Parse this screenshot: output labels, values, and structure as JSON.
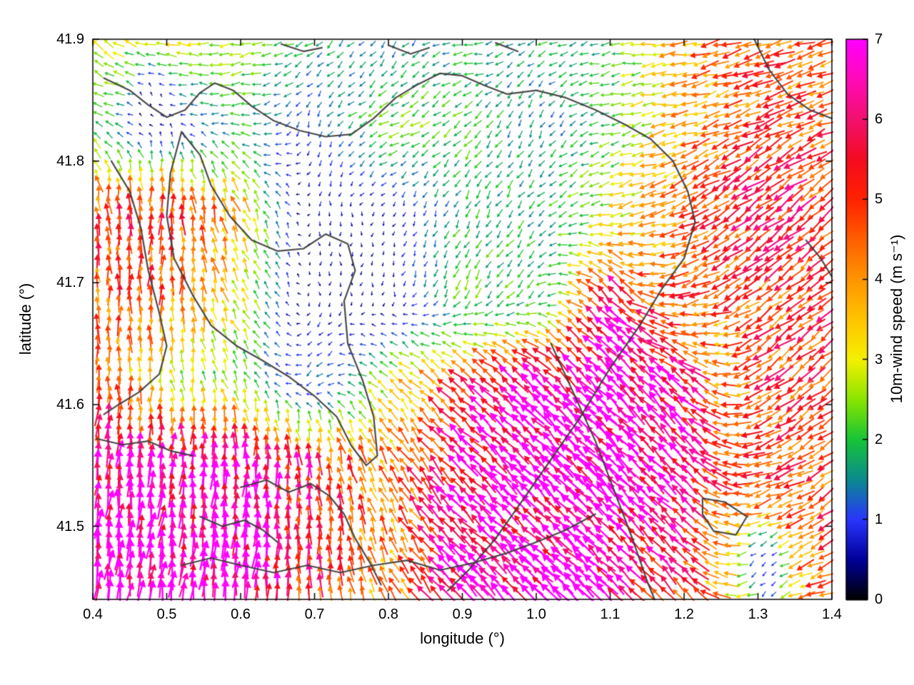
{
  "figure": {
    "background": "#ffffff"
  },
  "chart_data": {
    "type": "quiver",
    "title": "",
    "xlabel": "longitude (°)",
    "ylabel": "latitude (°)",
    "xlim": [
      0.4,
      1.4
    ],
    "ylim": [
      41.44,
      41.9
    ],
    "xtick_labels": [
      "0.4",
      "0.5",
      "0.6",
      "0.7",
      "0.8",
      "0.9",
      "1.0",
      "1.1",
      "1.2",
      "1.3",
      "1.4"
    ],
    "ytick_labels": [
      "41.5",
      "41.6",
      "41.7",
      "41.8",
      "41.9"
    ],
    "grid": false,
    "contour_color": "#3c3c3c",
    "colorbar": {
      "label": "10m-wind speed (m s⁻¹)",
      "min": 0,
      "max": 7,
      "tick_labels": [
        "0",
        "1",
        "2",
        "3",
        "4",
        "5",
        "6",
        "7"
      ],
      "stops": [
        [
          0.0,
          "#000000"
        ],
        [
          0.5,
          "#00009a"
        ],
        [
          1.0,
          "#2a35ff"
        ],
        [
          1.5,
          "#0b8a8f"
        ],
        [
          2.0,
          "#17c437"
        ],
        [
          2.5,
          "#8ae400"
        ],
        [
          3.0,
          "#f4f000"
        ],
        [
          3.5,
          "#ffc400"
        ],
        [
          4.0,
          "#ff9500"
        ],
        [
          4.5,
          "#ff5f00"
        ],
        [
          5.0,
          "#ff2200"
        ],
        [
          5.5,
          "#f30b20"
        ],
        [
          6.0,
          "#f2106e"
        ],
        [
          6.5,
          "#ff0ab8"
        ],
        [
          7.0,
          "#ff00ff"
        ]
      ]
    },
    "field": {
      "units": "m/s",
      "lon": [
        0.4,
        0.5,
        0.6,
        0.7,
        0.8,
        0.9,
        1.0,
        1.1,
        1.2,
        1.3,
        1.4
      ],
      "lat": [
        41.9,
        41.83,
        41.76,
        41.69,
        41.62,
        41.55,
        41.48,
        41.44
      ],
      "u": [
        [
          -2.5,
          -3.0,
          -2.5,
          -1.5,
          -0.5,
          -2.0,
          -1.5,
          -2.0,
          -4.0,
          -4.5,
          -4.2
        ],
        [
          -2.0,
          -0.5,
          -2.0,
          -0.3,
          -2.3,
          -1.5,
          -0.6,
          -2.0,
          -3.8,
          -4.3,
          -4.5
        ],
        [
          -0.5,
          0.3,
          -1.5,
          0.0,
          -0.2,
          -0.8,
          -1.2,
          -2.8,
          -4.0,
          -4.5,
          -4.0
        ],
        [
          -0.3,
          0.5,
          -1.5,
          0.0,
          -0.1,
          -1.0,
          -1.4,
          -4.5,
          -4.5,
          -3.8,
          -4.0
        ],
        [
          0.0,
          -0.5,
          -1.0,
          -1.0,
          -2.0,
          -4.0,
          -4.8,
          -5.0,
          -4.6,
          -4.0,
          -4.0
        ],
        [
          0.5,
          0.5,
          0.3,
          -0.5,
          -2.0,
          -4.6,
          -5.0,
          -5.0,
          -4.6,
          -4.8,
          -4.0
        ],
        [
          0.8,
          0.8,
          0.5,
          0.0,
          -1.5,
          -4.6,
          -4.8,
          -4.8,
          -3.9,
          -4.0,
          -4.2
        ],
        [
          1.0,
          1.0,
          0.6,
          0.0,
          -1.8,
          -4.8,
          -5.0,
          -4.8,
          -3.7,
          -3.8,
          -4.3
        ]
      ],
      "v": [
        [
          1.5,
          0.5,
          -0.5,
          -1.0,
          -1.3,
          0.0,
          -1.0,
          -0.3,
          -0.5,
          -1.5,
          -1.0
        ],
        [
          0.8,
          0.5,
          0.0,
          -1.1,
          -1.2,
          -1.5,
          -1.4,
          -0.5,
          -1.0,
          -2.0,
          -1.8
        ],
        [
          5.0,
          5.0,
          3.5,
          -0.6,
          -0.4,
          -1.7,
          -1.3,
          -0.8,
          -2.0,
          -3.5,
          -3.3
        ],
        [
          4.5,
          4.7,
          2.8,
          -0.5,
          -0.5,
          -2.0,
          -1.4,
          4.5,
          -1.5,
          -2.8,
          -3.3
        ],
        [
          5.0,
          2.7,
          2.0,
          -1.0,
          2.0,
          3.5,
          4.8,
          5.0,
          4.6,
          -3.0,
          -3.0
        ],
        [
          6.5,
          6.8,
          6.5,
          5.5,
          3.7,
          4.6,
          5.0,
          5.0,
          4.6,
          -1.5,
          -2.6
        ],
        [
          6.9,
          6.7,
          6.8,
          5.5,
          3.7,
          4.6,
          4.8,
          4.8,
          3.9,
          -1.2,
          -2.7
        ],
        [
          6.9,
          6.9,
          6.8,
          5.0,
          3.6,
          4.8,
          5.0,
          4.8,
          3.7,
          -1.2,
          -1.3
        ]
      ]
    },
    "patches": [
      {
        "lon": 1.31,
        "lat": 41.465,
        "r": 0.035,
        "u": -0.8,
        "v": -0.8
      },
      {
        "lon": 0.48,
        "lat": 41.845,
        "r": 0.03,
        "u": -0.3,
        "v": 0.3
      }
    ],
    "contours": [
      [
        [
          0.415,
          41.868
        ],
        [
          0.45,
          41.858
        ],
        [
          0.475,
          41.846
        ],
        [
          0.5,
          41.836
        ],
        [
          0.525,
          41.842
        ],
        [
          0.545,
          41.856
        ],
        [
          0.565,
          41.864
        ],
        [
          0.59,
          41.858
        ],
        [
          0.615,
          41.845
        ],
        [
          0.645,
          41.833
        ],
        [
          0.68,
          41.825
        ],
        [
          0.715,
          41.82
        ],
        [
          0.75,
          41.822
        ],
        [
          0.78,
          41.835
        ],
        [
          0.81,
          41.852
        ],
        [
          0.84,
          41.863
        ],
        [
          0.87,
          41.872
        ],
        [
          0.9,
          41.87
        ],
        [
          0.93,
          41.862
        ],
        [
          0.96,
          41.855
        ],
        [
          1.0,
          41.858
        ],
        [
          1.04,
          41.852
        ],
        [
          1.08,
          41.842
        ],
        [
          1.12,
          41.83
        ],
        [
          1.155,
          41.818
        ],
        [
          1.185,
          41.8
        ],
        [
          1.205,
          41.775
        ],
        [
          1.215,
          41.75
        ]
      ],
      [
        [
          1.215,
          41.75
        ],
        [
          1.2,
          41.72
        ],
        [
          1.17,
          41.695
        ],
        [
          1.14,
          41.665
        ],
        [
          1.1,
          41.63
        ],
        [
          1.06,
          41.59
        ],
        [
          1.02,
          41.555
        ],
        [
          0.98,
          41.52
        ],
        [
          0.945,
          41.49
        ],
        [
          0.91,
          41.465
        ],
        [
          0.88,
          41.447
        ]
      ],
      [
        [
          0.52,
          41.824
        ],
        [
          0.505,
          41.79
        ],
        [
          0.5,
          41.755
        ],
        [
          0.51,
          41.72
        ],
        [
          0.535,
          41.69
        ],
        [
          0.56,
          41.665
        ],
        [
          0.595,
          41.648
        ],
        [
          0.63,
          41.636
        ],
        [
          0.665,
          41.623
        ],
        [
          0.7,
          41.607
        ],
        [
          0.73,
          41.59
        ],
        [
          0.75,
          41.566
        ],
        [
          0.77,
          41.55
        ],
        [
          0.785,
          41.558
        ],
        [
          0.78,
          41.59
        ],
        [
          0.765,
          41.62
        ],
        [
          0.745,
          41.65
        ],
        [
          0.74,
          41.685
        ],
        [
          0.755,
          41.71
        ],
        [
          0.745,
          41.732
        ],
        [
          0.715,
          41.74
        ],
        [
          0.685,
          41.728
        ],
        [
          0.65,
          41.726
        ],
        [
          0.615,
          41.735
        ],
        [
          0.585,
          41.755
        ],
        [
          0.56,
          41.78
        ],
        [
          0.545,
          41.805
        ],
        [
          0.52,
          41.824
        ]
      ],
      [
        [
          0.425,
          41.8
        ],
        [
          0.45,
          41.775
        ],
        [
          0.465,
          41.745
        ],
        [
          0.475,
          41.71
        ],
        [
          0.49,
          41.675
        ],
        [
          0.5,
          41.648
        ],
        [
          0.49,
          41.625
        ],
        [
          0.462,
          41.61
        ],
        [
          0.435,
          41.6
        ],
        [
          0.415,
          41.592
        ]
      ],
      [
        [
          0.405,
          41.572
        ],
        [
          0.44,
          41.567
        ],
        [
          0.475,
          41.57
        ],
        [
          0.505,
          41.562
        ],
        [
          0.535,
          41.558
        ]
      ],
      [
        [
          0.6,
          41.532
        ],
        [
          0.635,
          41.538
        ],
        [
          0.665,
          41.528
        ],
        [
          0.695,
          41.535
        ],
        [
          0.72,
          41.525
        ],
        [
          0.74,
          41.51
        ],
        [
          0.755,
          41.49
        ],
        [
          0.775,
          41.47
        ],
        [
          0.79,
          41.452
        ]
      ],
      [
        [
          0.545,
          41.508
        ],
        [
          0.575,
          41.5
        ],
        [
          0.605,
          41.505
        ],
        [
          0.63,
          41.497
        ],
        [
          0.65,
          41.487
        ]
      ],
      [
        [
          0.52,
          41.468
        ],
        [
          0.56,
          41.474
        ],
        [
          0.6,
          41.468
        ],
        [
          0.645,
          41.462
        ],
        [
          0.69,
          41.468
        ],
        [
          0.735,
          41.462
        ],
        [
          0.78,
          41.468
        ],
        [
          0.825,
          41.472
        ],
        [
          0.87,
          41.464
        ],
        [
          0.915,
          41.47
        ],
        [
          0.96,
          41.478
        ],
        [
          1.0,
          41.487
        ],
        [
          1.04,
          41.497
        ],
        [
          1.08,
          41.51
        ]
      ],
      [
        [
          1.02,
          41.65
        ],
        [
          1.05,
          41.61
        ],
        [
          1.08,
          41.57
        ],
        [
          1.105,
          41.53
        ],
        [
          1.13,
          41.49
        ],
        [
          1.15,
          41.455
        ],
        [
          1.16,
          41.44
        ]
      ],
      [
        [
          1.295,
          41.9
        ],
        [
          1.315,
          41.875
        ],
        [
          1.34,
          41.855
        ],
        [
          1.37,
          41.842
        ],
        [
          1.4,
          41.835
        ]
      ],
      [
        [
          1.225,
          41.523
        ],
        [
          1.255,
          41.52
        ],
        [
          1.285,
          41.508
        ],
        [
          1.27,
          41.493
        ],
        [
          1.24,
          41.496
        ],
        [
          1.225,
          41.51
        ],
        [
          1.225,
          41.523
        ]
      ],
      [
        [
          1.365,
          41.735
        ],
        [
          1.385,
          41.72
        ],
        [
          1.4,
          41.705
        ]
      ],
      [
        [
          0.655,
          41.896
        ],
        [
          0.685,
          41.89
        ],
        [
          0.71,
          41.893
        ]
      ],
      [
        [
          0.8,
          41.895
        ],
        [
          0.83,
          41.888
        ],
        [
          0.855,
          41.893
        ]
      ],
      [
        [
          0.945,
          41.897
        ],
        [
          0.975,
          41.89
        ]
      ]
    ]
  }
}
